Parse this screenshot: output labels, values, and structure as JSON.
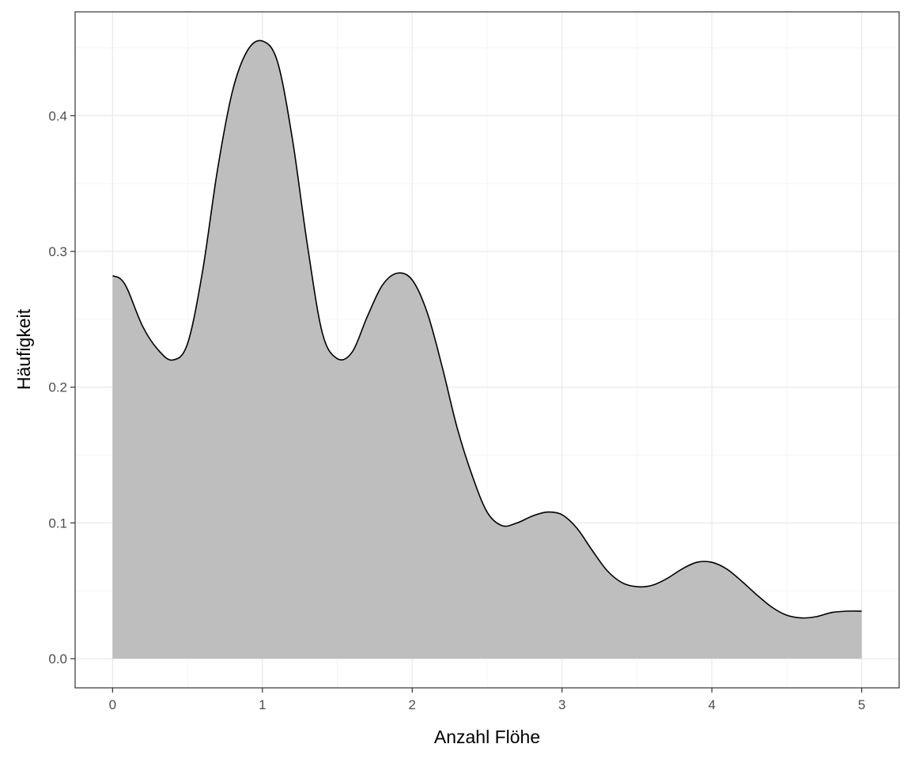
{
  "chart_data": {
    "type": "area",
    "title": "",
    "xlabel": "Anzahl Flöhe",
    "ylabel": "Häufigkeit",
    "xlim": [
      -0.25,
      5.25
    ],
    "ylim": [
      -0.0215,
      0.4765
    ],
    "x_ticks": [
      0,
      1,
      2,
      3,
      4,
      5
    ],
    "x_tick_labels": [
      "0",
      "1",
      "2",
      "3",
      "4",
      "5"
    ],
    "y_ticks": [
      0.0,
      0.1,
      0.2,
      0.3,
      0.4
    ],
    "y_tick_labels": [
      "0.0",
      "0.1",
      "0.2",
      "0.3",
      "0.4"
    ],
    "grid": true,
    "legend": "none",
    "colors": {
      "fill": "#bebebe",
      "line": "#000000"
    },
    "series": [
      {
        "x": [
          0,
          0.05,
          0.1,
          0.2,
          0.3,
          0.4,
          0.5,
          0.6,
          0.7,
          0.8,
          0.9,
          1.0,
          1.1,
          1.2,
          1.3,
          1.4,
          1.5,
          1.6,
          1.7,
          1.8,
          1.9,
          2.0,
          2.1,
          2.2,
          2.3,
          2.4,
          2.5,
          2.6,
          2.7,
          2.8,
          2.9,
          3.0,
          3.1,
          3.2,
          3.3,
          3.4,
          3.5,
          3.6,
          3.7,
          3.8,
          3.9,
          4.0,
          4.1,
          4.2,
          4.3,
          4.4,
          4.5,
          4.6,
          4.7,
          4.8,
          4.9,
          5.0
        ],
        "y": [
          0.282,
          0.28,
          0.272,
          0.245,
          0.228,
          0.22,
          0.232,
          0.285,
          0.36,
          0.418,
          0.448,
          0.455,
          0.44,
          0.383,
          0.305,
          0.24,
          0.221,
          0.226,
          0.252,
          0.275,
          0.284,
          0.279,
          0.255,
          0.215,
          0.17,
          0.135,
          0.108,
          0.098,
          0.1,
          0.105,
          0.108,
          0.106,
          0.096,
          0.08,
          0.065,
          0.056,
          0.053,
          0.054,
          0.059,
          0.066,
          0.071,
          0.071,
          0.066,
          0.057,
          0.047,
          0.038,
          0.032,
          0.03,
          0.031,
          0.034,
          0.035,
          0.035
        ]
      }
    ]
  }
}
